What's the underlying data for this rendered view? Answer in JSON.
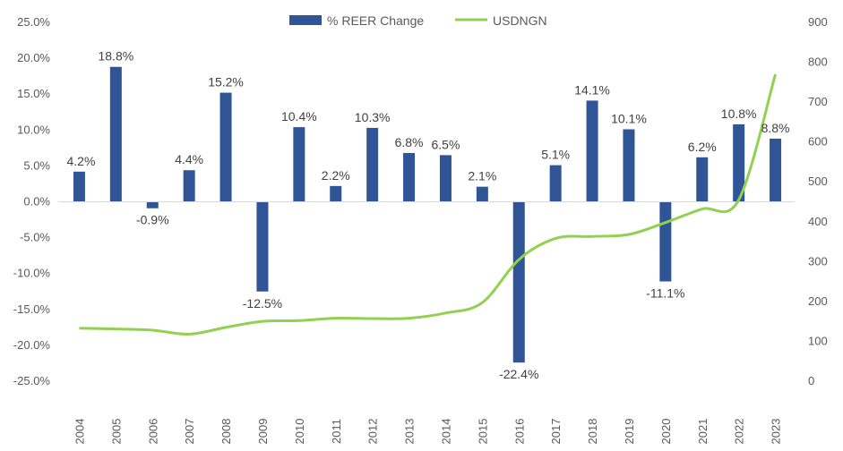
{
  "chart_data": {
    "type": "bar",
    "categories": [
      "2004",
      "2005",
      "2006",
      "2007",
      "2008",
      "2009",
      "2010",
      "2011",
      "2012",
      "2013",
      "2014",
      "2015",
      "2016",
      "2017",
      "2018",
      "2019",
      "2020",
      "2021",
      "2022",
      "2023"
    ],
    "series": [
      {
        "name": "% REER Change",
        "type": "bar",
        "axis": "left",
        "color": "#2f5597",
        "values": [
          4.2,
          18.8,
          -0.9,
          4.4,
          15.2,
          -12.5,
          10.4,
          2.2,
          10.3,
          6.8,
          6.5,
          2.1,
          -22.4,
          5.1,
          14.1,
          10.1,
          -11.1,
          6.2,
          10.8,
          8.8
        ],
        "labels": [
          "4.2%",
          "18.8%",
          "-0.9%",
          "4.4%",
          "15.2%",
          "-12.5%",
          "10.4%",
          "2.2%",
          "10.3%",
          "6.8%",
          "6.5%",
          "2.1%",
          "-22.4%",
          "5.1%",
          "14.1%",
          "10.1%",
          "-11.1%",
          "6.2%",
          "10.8%",
          "8.8%"
        ]
      },
      {
        "name": "USDNGN",
        "type": "line",
        "axis": "right",
        "color": "#92d050",
        "values": [
          133,
          131,
          128,
          118,
          135,
          150,
          152,
          158,
          157,
          158,
          171,
          197,
          305,
          358,
          363,
          368,
          398,
          432,
          455,
          770
        ]
      }
    ],
    "y_left": {
      "ylim": [
        -25,
        25
      ],
      "ticks": [
        25,
        20,
        15,
        10,
        5,
        0,
        -5,
        -10,
        -15,
        -20,
        -25
      ],
      "tick_labels": [
        "25.0%",
        "20.0%",
        "15.0%",
        "10.0%",
        "5.0%",
        "0.0%",
        "-5.0%",
        "-10.0%",
        "-15.0%",
        "-20.0%",
        "-25.0%"
      ]
    },
    "y_right": {
      "ylim": [
        0,
        900
      ],
      "ticks": [
        900,
        800,
        700,
        600,
        500,
        400,
        300,
        200,
        100,
        0
      ],
      "tick_labels": [
        "900",
        "800",
        "700",
        "600",
        "500",
        "400",
        "300",
        "200",
        "100",
        "0"
      ]
    },
    "title": "",
    "xlabel": "",
    "ylabel": "",
    "grid": false,
    "legend_position": "top-center"
  }
}
